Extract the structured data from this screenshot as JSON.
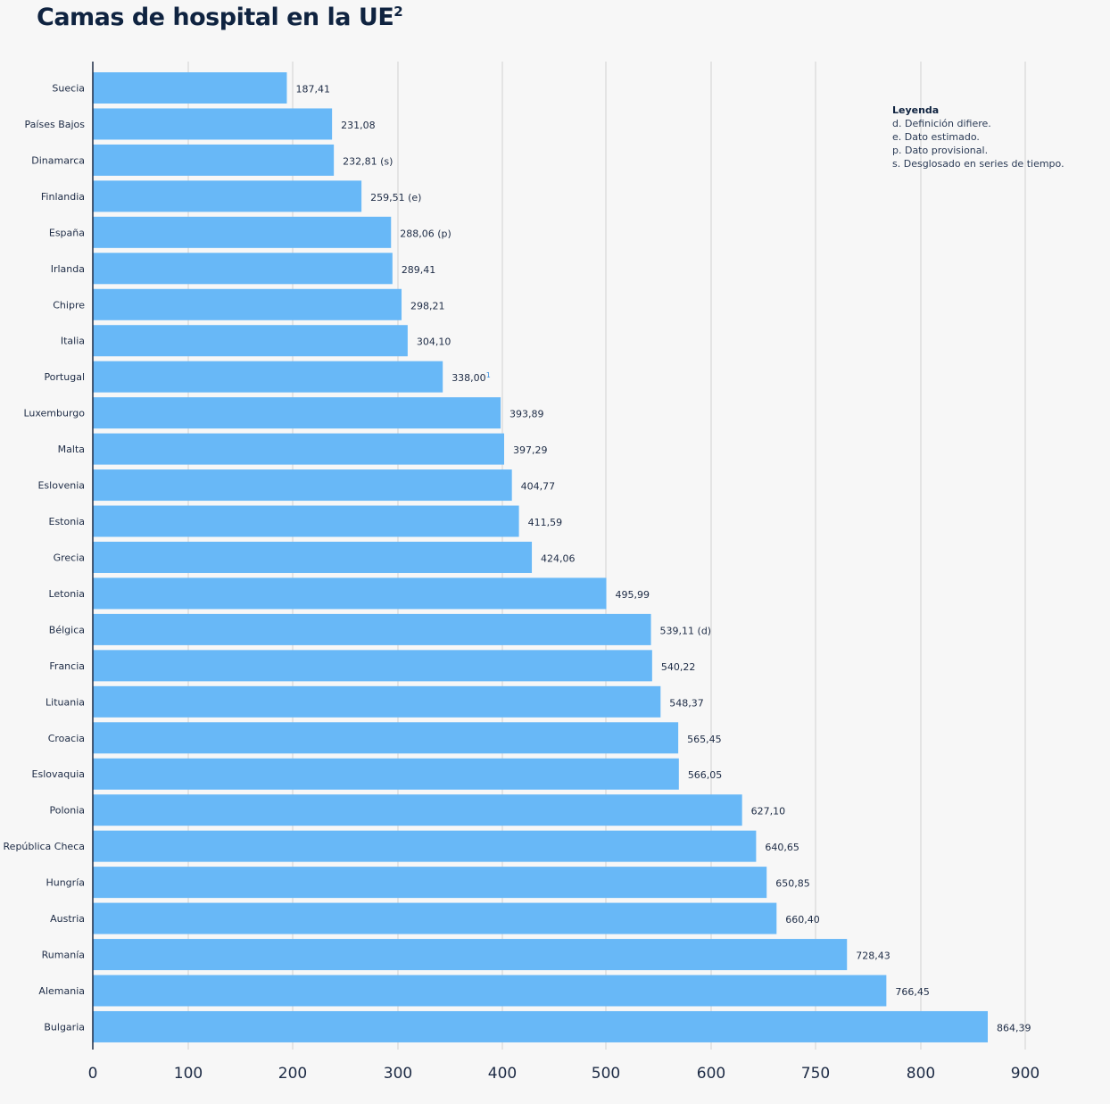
{
  "chart_data": {
    "type": "bar",
    "orientation": "horizontal",
    "title": "Camas de hospital en la UE",
    "title_note": "2",
    "categories": [
      "Suecia",
      "Países Bajos",
      "Dinamarca",
      "Finlandia",
      "España",
      "Irlanda",
      "Chipre",
      "Italia",
      "Portugal",
      "Luxemburgo",
      "Malta",
      "Eslovenia",
      "Estonia",
      "Grecia",
      "Letonia",
      "Bélgica",
      "Francia",
      "Lituania",
      "Croacia",
      "Eslovaquia",
      "Polonia",
      "República Checa",
      "Hungría",
      "Austria",
      "Rumanía",
      "Alemania",
      "Bulgaria"
    ],
    "values": [
      187.41,
      231.08,
      232.81,
      259.51,
      288.06,
      289.41,
      298.21,
      304.1,
      338.0,
      393.89,
      397.29,
      404.77,
      411.59,
      424.06,
      495.99,
      539.11,
      540.22,
      548.37,
      565.45,
      566.05,
      627.1,
      640.65,
      650.85,
      660.4,
      728.43,
      766.45,
      864.39
    ],
    "data_labels": [
      "187,41",
      "231,08",
      "232,81 (s)",
      "259,51 (e)",
      "288,06 (p)",
      "289,41",
      "298,21",
      "304,10",
      "338,00",
      "393,89",
      "397,29",
      "404,77",
      "411,59",
      "424,06",
      "495,99",
      "539,11 (d)",
      "540,22",
      "548,37",
      "565,45",
      "566,05",
      "627,10",
      "640,65",
      "650,85",
      "660,40",
      "728,43",
      "766,45",
      "864,39"
    ],
    "label_notes": [
      "",
      "",
      "",
      "",
      "",
      "",
      "",
      "",
      "1",
      "",
      "",
      "",
      "",
      "",
      "",
      "",
      "",
      "",
      "",
      "",
      "",
      "",
      "",
      "",
      "",
      "",
      ""
    ],
    "x_ticks": [
      "0",
      "100",
      "200",
      "300",
      "400",
      "500",
      "600",
      "750",
      "800",
      "900"
    ],
    "xlim": [
      0,
      900
    ],
    "xlabel": "",
    "ylabel": "",
    "grid": "vertical",
    "bar_color": "#68b8f7",
    "note_color": "#3a8fe0",
    "legend": {
      "placement": "top-right",
      "title": "Leyenda",
      "items": [
        "d. Definición difiere.",
        "e. Dato estimado.",
        "p. Dato provisional.",
        "s. Desglosado en series de tiempo."
      ]
    }
  }
}
